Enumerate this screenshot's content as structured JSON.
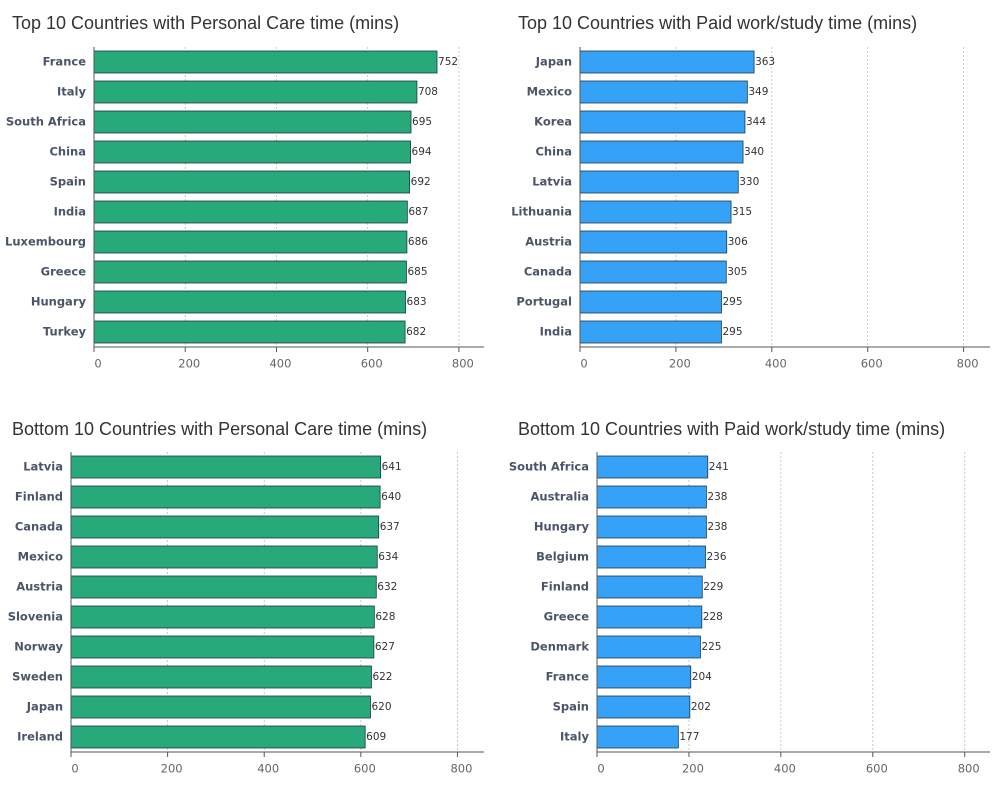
{
  "chart_data": [
    {
      "type": "bar",
      "orientation": "horizontal",
      "title": "Top 10 Countries with Personal Care time (mins)",
      "categories": [
        "France",
        "Italy",
        "South Africa",
        "China",
        "Spain",
        "India",
        "Luxembourg",
        "Greece",
        "Hungary",
        "Turkey"
      ],
      "values": [
        752,
        708,
        695,
        694,
        692,
        687,
        686,
        685,
        683,
        682
      ],
      "color": "#27a97a",
      "xlim": [
        0,
        855
      ],
      "xticks": [
        0,
        200,
        400,
        600,
        800
      ],
      "grid": true
    },
    {
      "type": "bar",
      "orientation": "horizontal",
      "title": "Top 10 Countries with Paid work/study time (mins)",
      "categories": [
        "Japan",
        "Mexico",
        "Korea",
        "China",
        "Latvia",
        "Lithuania",
        "Austria",
        "Canada",
        "Portugal",
        "India"
      ],
      "values": [
        363,
        349,
        344,
        340,
        330,
        315,
        306,
        305,
        295,
        295
      ],
      "color": "#36a2f7",
      "xlim": [
        0,
        855
      ],
      "xticks": [
        0,
        200,
        400,
        600,
        800
      ],
      "grid": true
    },
    {
      "type": "bar",
      "orientation": "horizontal",
      "title": "Bottom 10 Countries with Personal Care time (mins)",
      "categories": [
        "Latvia",
        "Finland",
        "Canada",
        "Mexico",
        "Austria",
        "Slovenia",
        "Norway",
        "Sweden",
        "Japan",
        "Ireland"
      ],
      "values": [
        641,
        640,
        637,
        634,
        632,
        628,
        627,
        622,
        620,
        609
      ],
      "color": "#27a97a",
      "xlim": [
        0,
        855
      ],
      "xticks": [
        0,
        200,
        400,
        600,
        800
      ],
      "grid": true
    },
    {
      "type": "bar",
      "orientation": "horizontal",
      "title": "Bottom 10 Countries with Paid work/study time (mins)",
      "categories": [
        "South Africa",
        "Australia",
        "Hungary",
        "Belgium",
        "Finland",
        "Greece",
        "Denmark",
        "France",
        "Spain",
        "Italy"
      ],
      "values": [
        241,
        238,
        238,
        236,
        229,
        228,
        225,
        204,
        202,
        177
      ],
      "color": "#36a2f7",
      "xlim": [
        0,
        855
      ],
      "xticks": [
        0,
        200,
        400,
        600,
        800
      ],
      "grid": true
    }
  ]
}
